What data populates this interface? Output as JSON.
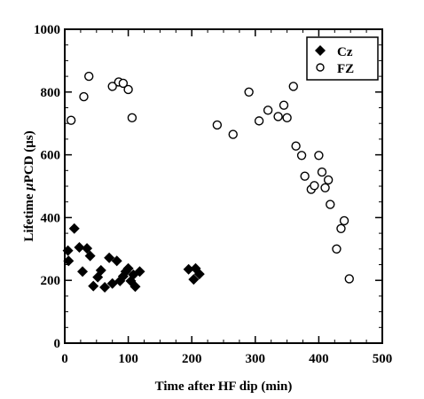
{
  "chart_data": {
    "type": "scatter",
    "xlabel": "Time after HF dip (min)",
    "ylabel_pre": "Lifetime ",
    "ylabel_mu": "μ",
    "ylabel_post": "PCD (μs)",
    "xlim": [
      0,
      500
    ],
    "ylim": [
      0,
      1000
    ],
    "xticks": [
      0,
      100,
      200,
      300,
      400,
      500
    ],
    "yticks": [
      0,
      200,
      400,
      600,
      800,
      1000
    ],
    "legend_position": "top-right",
    "series": [
      {
        "name": "Cz",
        "marker": "filled-diamond",
        "color": "#000000",
        "points": [
          [
            5,
            295
          ],
          [
            6,
            262
          ],
          [
            15,
            365
          ],
          [
            23,
            305
          ],
          [
            28,
            228
          ],
          [
            35,
            302
          ],
          [
            40,
            278
          ],
          [
            45,
            182
          ],
          [
            52,
            210
          ],
          [
            57,
            232
          ],
          [
            63,
            178
          ],
          [
            70,
            272
          ],
          [
            75,
            190
          ],
          [
            82,
            262
          ],
          [
            87,
            198
          ],
          [
            92,
            213
          ],
          [
            96,
            228
          ],
          [
            100,
            238
          ],
          [
            104,
            198
          ],
          [
            108,
            218
          ],
          [
            111,
            180
          ],
          [
            118,
            228
          ],
          [
            195,
            235
          ],
          [
            203,
            203
          ],
          [
            206,
            238
          ],
          [
            212,
            220
          ]
        ]
      },
      {
        "name": "FZ",
        "marker": "open-circle",
        "color": "#000000",
        "points": [
          [
            10,
            710
          ],
          [
            30,
            785
          ],
          [
            38,
            850
          ],
          [
            75,
            818
          ],
          [
            85,
            832
          ],
          [
            92,
            828
          ],
          [
            100,
            808
          ],
          [
            106,
            718
          ],
          [
            240,
            695
          ],
          [
            265,
            665
          ],
          [
            290,
            800
          ],
          [
            306,
            708
          ],
          [
            320,
            742
          ],
          [
            336,
            722
          ],
          [
            345,
            758
          ],
          [
            350,
            718
          ],
          [
            360,
            818
          ],
          [
            364,
            628
          ],
          [
            373,
            598
          ],
          [
            378,
            532
          ],
          [
            388,
            490
          ],
          [
            393,
            502
          ],
          [
            400,
            598
          ],
          [
            405,
            545
          ],
          [
            410,
            495
          ],
          [
            415,
            520
          ],
          [
            418,
            442
          ],
          [
            428,
            300
          ],
          [
            435,
            365
          ],
          [
            440,
            390
          ],
          [
            448,
            205
          ]
        ]
      }
    ]
  }
}
